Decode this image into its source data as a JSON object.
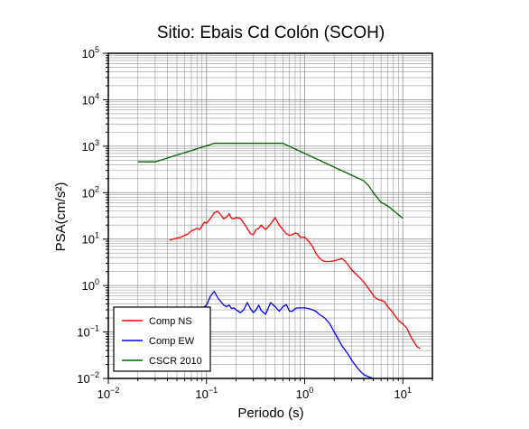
{
  "chart_data": {
    "type": "line",
    "title": "Sitio: Ebais Cd Colón (SCOH)",
    "xlabel": "Periodo (s)",
    "ylabel": "PSA(cm/s²)",
    "x_scale": "log",
    "y_scale": "log",
    "xlim": [
      0.01,
      20
    ],
    "ylim": [
      0.01,
      100000
    ],
    "grid": true,
    "legend_position": "bottom-left",
    "x_ticks": [
      {
        "value": 0.01,
        "base": "10",
        "exp": "−2"
      },
      {
        "value": 0.1,
        "base": "10",
        "exp": "−1"
      },
      {
        "value": 1,
        "base": "10",
        "exp": "0"
      },
      {
        "value": 10,
        "base": "10",
        "exp": "1"
      }
    ],
    "y_ticks": [
      {
        "value": 0.01,
        "base": "10",
        "exp": "−2"
      },
      {
        "value": 0.1,
        "base": "10",
        "exp": "−1"
      },
      {
        "value": 1,
        "base": "10",
        "exp": "0"
      },
      {
        "value": 10,
        "base": "10",
        "exp": "1"
      },
      {
        "value": 100,
        "base": "10",
        "exp": "2"
      },
      {
        "value": 1000,
        "base": "10",
        "exp": "3"
      },
      {
        "value": 10000,
        "base": "10",
        "exp": "4"
      },
      {
        "value": 100000,
        "base": "10",
        "exp": "5"
      }
    ],
    "series": [
      {
        "name": "Comp NS",
        "color": "#ff0000",
        "x": [
          0.042,
          0.05,
          0.055,
          0.06,
          0.065,
          0.07,
          0.075,
          0.08,
          0.085,
          0.09,
          0.095,
          0.1,
          0.11,
          0.12,
          0.13,
          0.14,
          0.15,
          0.16,
          0.17,
          0.18,
          0.19,
          0.2,
          0.22,
          0.24,
          0.26,
          0.28,
          0.3,
          0.32,
          0.34,
          0.36,
          0.4,
          0.45,
          0.5,
          0.55,
          0.6,
          0.65,
          0.7,
          0.75,
          0.8,
          0.85,
          0.9,
          1.0,
          1.1,
          1.2,
          1.3,
          1.4,
          1.5,
          1.6,
          1.8,
          2.0,
          2.2,
          2.4,
          2.6,
          2.8,
          3.0,
          3.3,
          3.6,
          4.0,
          4.4,
          4.8,
          5.2,
          5.6,
          6.0,
          6.5,
          7.0,
          7.5,
          8.0,
          8.5,
          9.0,
          9.5,
          10,
          11,
          12,
          13,
          14,
          15
        ],
        "y": [
          9.5,
          10.5,
          11,
          12,
          13,
          15,
          16,
          17,
          16,
          19,
          23,
          22,
          28,
          37,
          40,
          33,
          27,
          30,
          35,
          28,
          27,
          29,
          28,
          22,
          17,
          13,
          12.5,
          16,
          17,
          20,
          16,
          21,
          29,
          20,
          16,
          13,
          12,
          12.5,
          13.5,
          13,
          11,
          11,
          9,
          7,
          5,
          4,
          3.5,
          3.3,
          3.3,
          3.4,
          3.6,
          3.8,
          3.3,
          2.7,
          2.2,
          1.8,
          1.5,
          1.2,
          0.9,
          0.7,
          0.55,
          0.5,
          0.48,
          0.45,
          0.35,
          0.3,
          0.25,
          0.21,
          0.18,
          0.16,
          0.15,
          0.12,
          0.08,
          0.06,
          0.048,
          0.044
        ]
      },
      {
        "name": "Comp EW",
        "color": "#0000ff",
        "x": [
          0.08,
          0.085,
          0.09,
          0.095,
          0.1,
          0.11,
          0.12,
          0.13,
          0.14,
          0.15,
          0.16,
          0.17,
          0.18,
          0.19,
          0.2,
          0.22,
          0.24,
          0.26,
          0.28,
          0.3,
          0.32,
          0.34,
          0.36,
          0.4,
          0.45,
          0.5,
          0.55,
          0.6,
          0.65,
          0.7,
          0.75,
          0.8,
          0.85,
          0.9,
          1.0,
          1.1,
          1.2,
          1.3,
          1.4,
          1.5,
          1.6,
          1.8,
          2.0,
          2.2,
          2.4,
          2.6,
          2.8,
          3.0,
          3.3,
          3.6,
          4.0,
          4.4,
          5.0
        ],
        "y": [
          0.2,
          0.24,
          0.28,
          0.35,
          0.38,
          0.6,
          0.75,
          0.55,
          0.45,
          0.38,
          0.35,
          0.38,
          0.32,
          0.33,
          0.3,
          0.26,
          0.3,
          0.43,
          0.32,
          0.26,
          0.3,
          0.38,
          0.29,
          0.24,
          0.43,
          0.35,
          0.28,
          0.35,
          0.39,
          0.28,
          0.28,
          0.32,
          0.33,
          0.33,
          0.33,
          0.32,
          0.3,
          0.28,
          0.24,
          0.22,
          0.2,
          0.15,
          0.1,
          0.07,
          0.05,
          0.04,
          0.032,
          0.025,
          0.019,
          0.015,
          0.012,
          0.011,
          0.01
        ]
      },
      {
        "name": "CSCR 2010",
        "color": "#006400",
        "x": [
          0.02,
          0.03,
          0.12,
          0.6,
          4.0,
          4.5,
          5.0,
          6.0,
          7.0,
          10.0
        ],
        "y": [
          460,
          460,
          1150,
          1150,
          180,
          140,
          100,
          62,
          52,
          28
        ]
      }
    ]
  }
}
